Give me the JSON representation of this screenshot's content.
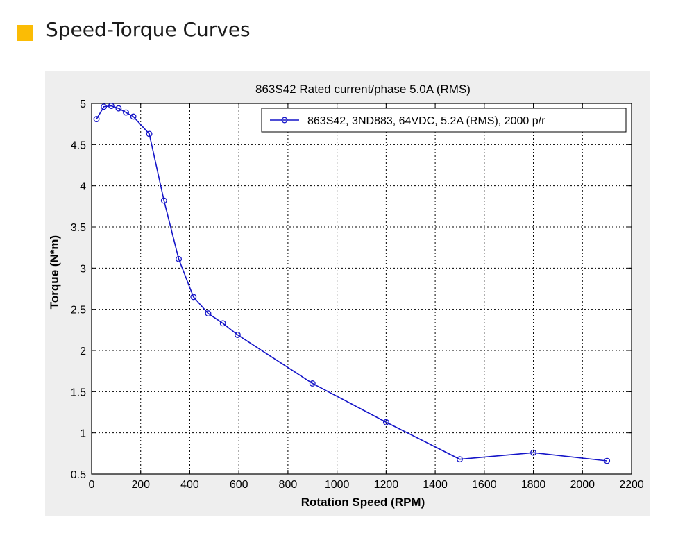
{
  "header": {
    "title": "Speed-Torque Curves",
    "accent_color": "#fbbc05"
  },
  "chart_data": {
    "type": "line",
    "title": "863S42 Rated current/phase 5.0A (RMS)",
    "xlabel": "Rotation Speed (RPM)",
    "ylabel": "Torque (N*m)",
    "xlim": [
      0,
      2200
    ],
    "ylim": [
      0.5,
      5
    ],
    "xticks": [
      0,
      200,
      400,
      600,
      800,
      1000,
      1200,
      1400,
      1600,
      1800,
      2000,
      2200
    ],
    "yticks": [
      0.5,
      1,
      1.5,
      2,
      2.5,
      3,
      3.5,
      4,
      4.5,
      5
    ],
    "grid": true,
    "legend_position": "top-right",
    "series": [
      {
        "name": "863S42, 3ND883, 64VDC, 5.2A (RMS), 2000 p/r",
        "color": "#1414c8",
        "marker": "circle",
        "x": [
          20,
          50,
          80,
          110,
          140,
          170,
          235,
          295,
          355,
          415,
          475,
          535,
          595,
          900,
          1200,
          1500,
          1800,
          2100
        ],
        "y": [
          4.81,
          4.96,
          4.97,
          4.94,
          4.89,
          4.84,
          4.63,
          3.82,
          3.11,
          2.65,
          2.45,
          2.33,
          2.19,
          1.6,
          1.13,
          0.68,
          0.76,
          0.66
        ]
      }
    ]
  }
}
